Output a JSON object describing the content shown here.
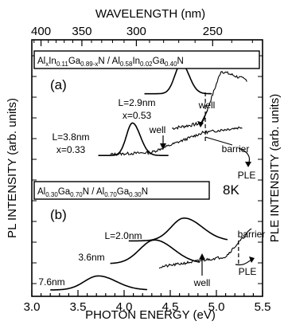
{
  "chart_data": {
    "type": "line",
    "title": "",
    "xlabel": "PHOTON ENERGY (eV)",
    "ylabel_left": "PL INTENSITY (arb. units)",
    "ylabel_right": "PLE INTENSITY (arb. units)",
    "xlabel_top": "WAVELENGTH (nm)",
    "xlim": [
      3.0,
      5.5
    ],
    "x_ticks": [
      "3.0",
      "3.5",
      "4.0",
      "4.5",
      "5.0",
      "5.5"
    ],
    "top_ticks": [
      "400",
      "350",
      "300",
      "250"
    ],
    "top_tick_values": [
      400,
      350,
      300,
      250
    ],
    "temperature": "8K",
    "grid": false,
    "panels": [
      {
        "label": "(a)",
        "structure": {
          "parts": [
            {
              "t": "Al",
              "s": false
            },
            {
              "t": "x",
              "s": true
            },
            {
              "t": "In",
              "s": false
            },
            {
              "t": "0.11",
              "s": true
            },
            {
              "t": "Ga",
              "s": false
            },
            {
              "t": "0.89-x",
              "s": true
            },
            {
              "t": "N / Al",
              "s": false
            },
            {
              "t": "0.58",
              "s": true
            },
            {
              "t": "In",
              "s": false
            },
            {
              "t": "0.02",
              "s": true
            },
            {
              "t": "Ga",
              "s": false
            },
            {
              "t": "0.40",
              "s": true
            },
            {
              "t": "N",
              "s": false
            }
          ]
        },
        "series": [
          {
            "name": "L=2.9nm x=0.53",
            "label_line1": "L=2.9nm",
            "label_line2": "x=0.53",
            "type": "PL",
            "peak_ev": 4.62,
            "width_ev": 0.07,
            "offset": 0.62,
            "height": 0.28
          },
          {
            "name": "L=3.8nm x=0.33",
            "label_line1": "L=3.8nm",
            "label_line2": "x=0.33",
            "type": "PL",
            "peak_ev": 4.09,
            "width_ev": 0.065,
            "offset": 0.05,
            "height": 0.3
          }
        ],
        "annotations": {
          "well_upper": "well",
          "well_lower": "well",
          "barrier": "barrier",
          "ple": "PLE"
        },
        "barrier_ev": 4.88
      },
      {
        "label": "(b)",
        "structure": {
          "parts": [
            {
              "t": "Al",
              "s": false
            },
            {
              "t": "0.30",
              "s": true
            },
            {
              "t": "Ga",
              "s": false
            },
            {
              "t": "0.70",
              "s": true
            },
            {
              "t": "N / Al",
              "s": false
            },
            {
              "t": "0.70",
              "s": true
            },
            {
              "t": "Ga",
              "s": false
            },
            {
              "t": "0.30",
              "s": true
            },
            {
              "t": "N",
              "s": false
            }
          ]
        },
        "series": [
          {
            "name": "L=2.0nm",
            "label": "L=2.0nm",
            "type": "PL",
            "peak_ev": 4.65,
            "width_ev": 0.14,
            "offset": 0.56,
            "height": 0.26
          },
          {
            "name": "3.6nm",
            "label": "3.6nm",
            "type": "PL",
            "peak_ev": 4.33,
            "width_ev": 0.16,
            "offset": 0.3,
            "height": 0.27
          },
          {
            "name": "7.6nm",
            "label": "7.6nm",
            "type": "PL",
            "peak_ev": 3.72,
            "width_ev": 0.15,
            "offset": 0.0,
            "height": 0.16
          }
        ],
        "annotations": {
          "well": "well",
          "barrier": "barrier",
          "ple": "PLE"
        },
        "barrier_ev": 5.24
      }
    ]
  }
}
